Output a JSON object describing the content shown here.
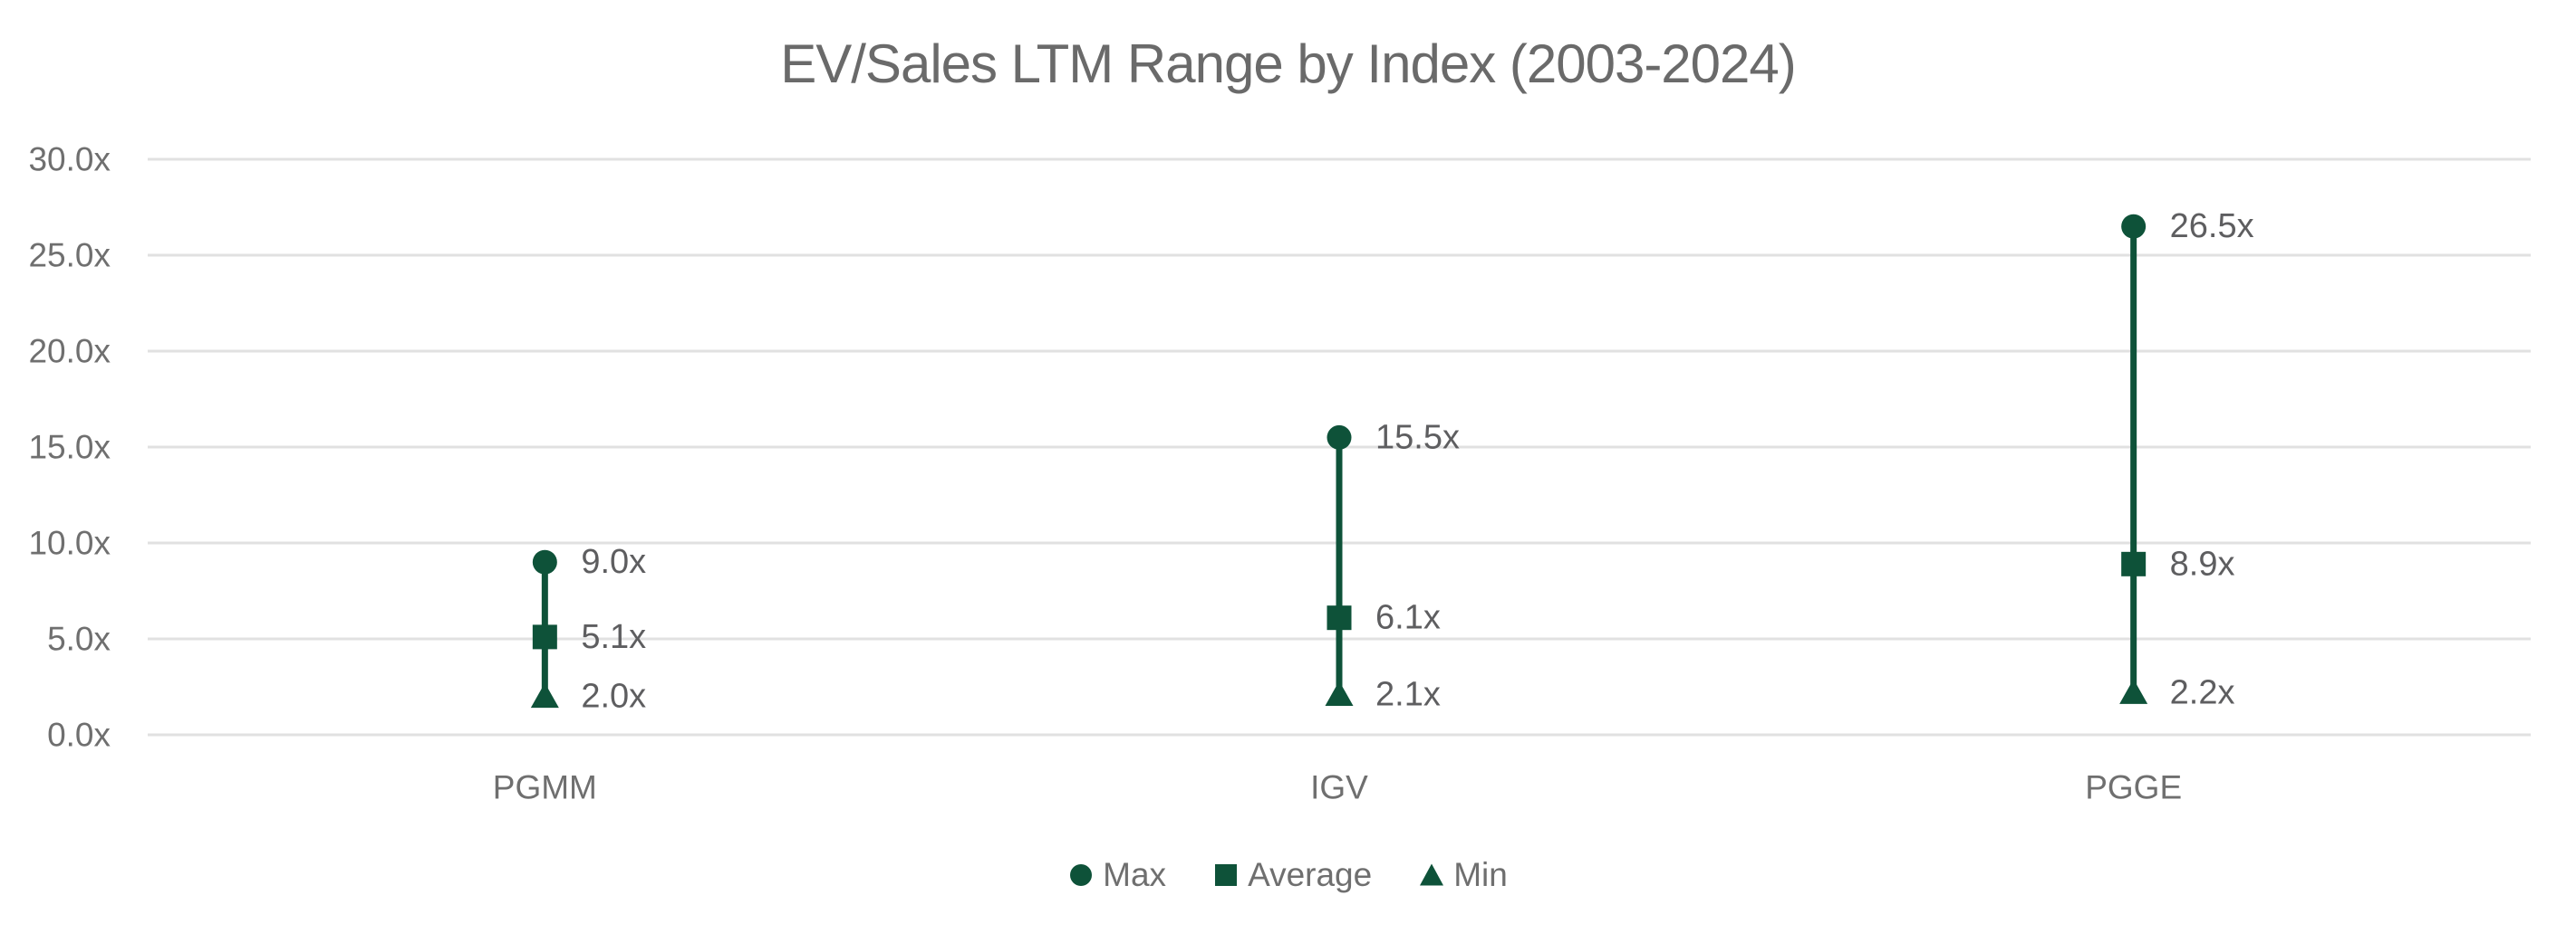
{
  "chart_data": {
    "type": "scatter",
    "subtype": "high-low-range",
    "title": "EV/Sales LTM Range by Index (2003-2024)",
    "categories": [
      "PGMM",
      "IGV",
      "PGGE"
    ],
    "series": [
      {
        "name": "Max",
        "marker": "circle",
        "values": [
          9.0,
          15.5,
          26.5
        ],
        "labels": [
          "9.0x",
          "15.5x",
          "26.5x"
        ]
      },
      {
        "name": "Average",
        "marker": "square",
        "values": [
          5.1,
          6.1,
          8.9
        ],
        "labels": [
          "5.1x",
          "6.1x",
          "8.9x"
        ]
      },
      {
        "name": "Min",
        "marker": "triangle",
        "values": [
          2.0,
          2.1,
          2.2
        ],
        "labels": [
          "2.0x",
          "2.1x",
          "2.2x"
        ]
      }
    ],
    "y_axis": {
      "min": 0,
      "max": 30,
      "tick_step": 5,
      "ticks": [
        0,
        5,
        10,
        15,
        20,
        25,
        30
      ],
      "tick_labels": [
        "0.0x",
        "5.0x",
        "10.0x",
        "15.0x",
        "20.0x",
        "25.0x",
        "30.0x"
      ],
      "grid": true
    },
    "x_axis": {
      "labels": [
        "PGMM",
        "IGV",
        "PGGE"
      ]
    },
    "legend": {
      "position": "bottom",
      "items": [
        {
          "label": "Max",
          "marker": "circle"
        },
        {
          "label": "Average",
          "marker": "square"
        },
        {
          "label": "Min",
          "marker": "triangle"
        }
      ]
    },
    "colors": {
      "series": "#0E5239",
      "grid": "#E1E1E1",
      "tick_text": "#6F6F6F",
      "category_text": "#6F6F6F",
      "data_label_text": "#5E5E60",
      "title_text": "#6A6A6A",
      "background": "#FFFFFF"
    }
  }
}
